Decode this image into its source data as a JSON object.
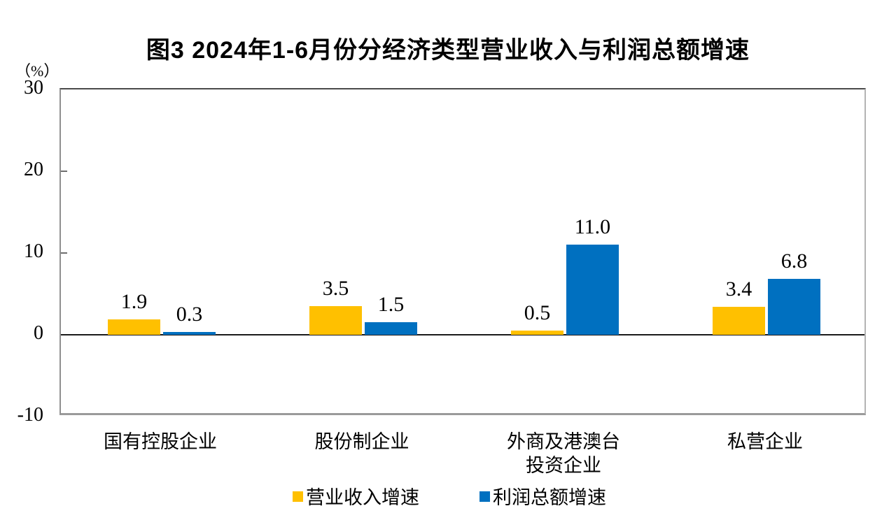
{
  "chart_data": {
    "type": "bar",
    "title": "图3  2024年1-6月份分经济类型营业收入与利润总额增速",
    "unit_label": "（%）",
    "categories": [
      [
        "国有控股企业"
      ],
      [
        "股份制企业"
      ],
      [
        "外商及港澳台",
        "投资企业"
      ],
      [
        "私营企业"
      ]
    ],
    "series": [
      {
        "name": "营业收入增速",
        "color": "#FFC000",
        "values": [
          1.9,
          3.5,
          0.5,
          3.4
        ],
        "labels": [
          "1.9",
          "3.5",
          "0.5",
          "3.4"
        ]
      },
      {
        "name": "利润总额增速",
        "color": "#0070C0",
        "values": [
          0.3,
          1.5,
          11.0,
          6.8
        ],
        "labels": [
          "0.3",
          "1.5",
          "11.0",
          "6.8"
        ]
      }
    ],
    "y_axis": {
      "max": 30,
      "min": -10,
      "ticks": [
        30,
        20,
        10,
        0,
        -10
      ],
      "tick_labels": [
        "30",
        "20",
        "10",
        "0",
        "-10"
      ]
    },
    "legend": [
      {
        "label": "营业收入增速",
        "color": "#FFC000"
      },
      {
        "label": "利润总额增速",
        "color": "#0070C0"
      }
    ],
    "legend_position": "bottom",
    "grid": false,
    "colors": {
      "bar_income": "#FFC000",
      "bar_profit": "#0070C0",
      "zero_line": "#1a1a1a",
      "axis_frame": "#9a9a9a"
    }
  }
}
